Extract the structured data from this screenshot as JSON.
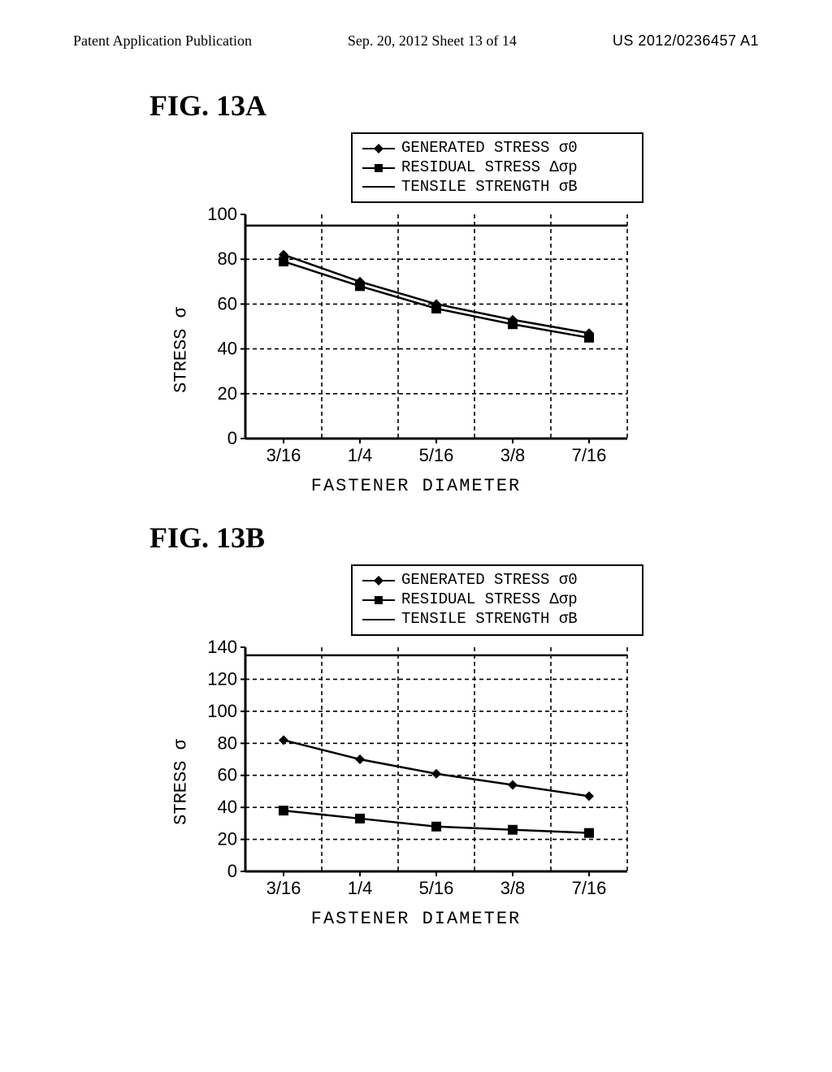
{
  "header": {
    "left": "Patent Application Publication",
    "center": "Sep. 20, 2012  Sheet 13 of 14",
    "right": "US 2012/0236457 A1"
  },
  "figA": {
    "title": "FIG. 13A",
    "legend": {
      "s1": "GENERATED STRESS  σ0",
      "s2": "RESIDUAL STRESS  Δσp",
      "s3": "TENSILE STRENGTH  σB"
    },
    "y_label": "STRESS  σ",
    "x_label": "FASTENER DIAMETER",
    "y": {
      "min": 0,
      "max": 100,
      "ticks": [
        0,
        20,
        40,
        60,
        80,
        100
      ]
    },
    "x": {
      "categories": [
        "3/16",
        "1/4",
        "5/16",
        "3/8",
        "7/16"
      ]
    },
    "series": {
      "generated": {
        "values": [
          82,
          70,
          60,
          53,
          47
        ],
        "marker": "diamond",
        "color": "#000000",
        "fill": "#000000"
      },
      "residual": {
        "values": [
          79,
          68,
          58,
          51,
          45
        ],
        "marker": "square",
        "color": "#000000",
        "fill": "#000000"
      },
      "tensile": {
        "value": 95,
        "color": "#000000"
      }
    },
    "style": {
      "grid_dash": "5,4",
      "grid_color": "#000000",
      "axis_color": "#000000",
      "line_width": 2.5,
      "marker_size": 12,
      "tick_font_size": 22
    }
  },
  "figB": {
    "title": "FIG. 13B",
    "legend": {
      "s1": "GENERATED STRESS  σ0",
      "s2": "RESIDUAL STRESS  Δσp",
      "s3": "TENSILE STRENGTH  σB"
    },
    "y_label": "STRESS  σ",
    "x_label": "FASTENER DIAMETER",
    "y": {
      "min": 0,
      "max": 140,
      "ticks": [
        0,
        20,
        40,
        60,
        80,
        100,
        120,
        140
      ]
    },
    "x": {
      "categories": [
        "3/16",
        "1/4",
        "5/16",
        "3/8",
        "7/16"
      ]
    },
    "series": {
      "generated": {
        "values": [
          82,
          70,
          61,
          54,
          47
        ],
        "marker": "diamond",
        "color": "#000000",
        "fill": "#000000"
      },
      "residual": {
        "values": [
          38,
          33,
          28,
          26,
          24
        ],
        "marker": "square",
        "color": "#000000",
        "fill": "#000000"
      },
      "tensile": {
        "value": 135,
        "color": "#000000"
      }
    },
    "style": {
      "grid_dash": "5,4",
      "grid_color": "#000000",
      "axis_color": "#000000",
      "line_width": 2.5,
      "marker_size": 12,
      "tick_font_size": 22
    }
  }
}
